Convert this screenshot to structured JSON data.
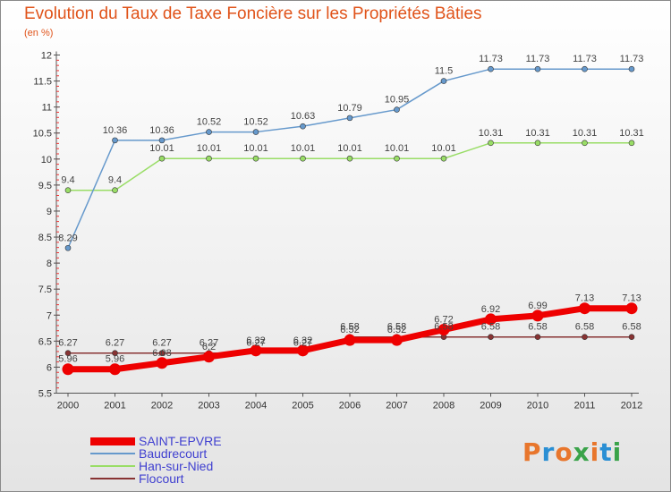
{
  "title": "Evolution du Taux de Taxe Foncière sur les Propriétés Bâties",
  "subtitle": "(en %)",
  "logo": {
    "text": "Proxiti",
    "colors": [
      "#e8762c",
      "#2a8fd4",
      "#e8762c",
      "#3aa34a",
      "#e8762c",
      "#2a8fd4",
      "#3aa34a"
    ]
  },
  "chart_data": {
    "type": "line",
    "title": "Evolution du Taux de Taxe Foncière sur les Propriétés Bâties",
    "ylabel": "(en %)",
    "ylim": [
      5.5,
      12
    ],
    "yticks": [
      "5.5",
      "6",
      "6.5",
      "7",
      "7.5",
      "8",
      "8.5",
      "9",
      "9.5",
      "10",
      "10.5",
      "11",
      "11.5",
      "12"
    ],
    "categories": [
      "2000",
      "2001",
      "2002",
      "2003",
      "2004",
      "2005",
      "2006",
      "2007",
      "2008",
      "2009",
      "2010",
      "2011",
      "2012"
    ],
    "grid": false,
    "legend_position": "bottom-left",
    "series": [
      {
        "name": "SAINT-EPVRE",
        "color": "#ee0000",
        "values": [
          5.96,
          5.96,
          6.08,
          6.2,
          6.32,
          6.32,
          6.52,
          6.52,
          6.72,
          6.92,
          6.99,
          7.13,
          7.13
        ],
        "labels": [
          "5.96",
          "5.96",
          "6.08",
          "6.2",
          "6.32",
          "6.32",
          "6.52",
          "6.52",
          "6.72",
          "6.92",
          "6.99",
          "7.13",
          "7.13"
        ]
      },
      {
        "name": "Baudrecourt",
        "color": "#6699cc",
        "values": [
          8.29,
          10.36,
          10.36,
          10.52,
          10.52,
          10.63,
          10.79,
          10.95,
          11.5,
          11.73,
          11.73,
          11.73,
          11.73
        ],
        "labels": [
          "8.29",
          "10.36",
          "10.36",
          "10.52",
          "10.52",
          "10.63",
          "10.79",
          "10.95",
          "11.5",
          "11.73",
          "11.73",
          "11.73",
          "11.73"
        ]
      },
      {
        "name": "Han-sur-Nied",
        "color": "#99dd66",
        "values": [
          9.4,
          9.4,
          10.01,
          10.01,
          10.01,
          10.01,
          10.01,
          10.01,
          10.01,
          10.31,
          10.31,
          10.31,
          10.31
        ],
        "labels": [
          "9.4",
          "9.4",
          "10.01",
          "10.01",
          "10.01",
          "10.01",
          "10.01",
          "10.01",
          "10.01",
          "10.31",
          "10.31",
          "10.31",
          "10.31"
        ]
      },
      {
        "name": "Flocourt",
        "color": "#883333",
        "values": [
          6.27,
          6.27,
          6.27,
          6.27,
          6.27,
          6.27,
          6.58,
          6.58,
          6.58,
          6.58,
          6.58,
          6.58,
          6.58
        ],
        "labels": [
          "6.27",
          "6.27",
          "6.27",
          "6.27",
          "6.27",
          "6.27",
          "6.58",
          "6.58",
          "6.58",
          "6.58",
          "6.58",
          "6.58",
          "6.58"
        ]
      }
    ]
  },
  "legend": {
    "items": [
      {
        "label": "SAINT-EPVRE",
        "color": "#ee0000"
      },
      {
        "label": "Baudrecourt",
        "color": "#6699cc"
      },
      {
        "label": "Han-sur-Nied",
        "color": "#99dd66"
      },
      {
        "label": "Flocourt",
        "color": "#883333"
      }
    ]
  }
}
